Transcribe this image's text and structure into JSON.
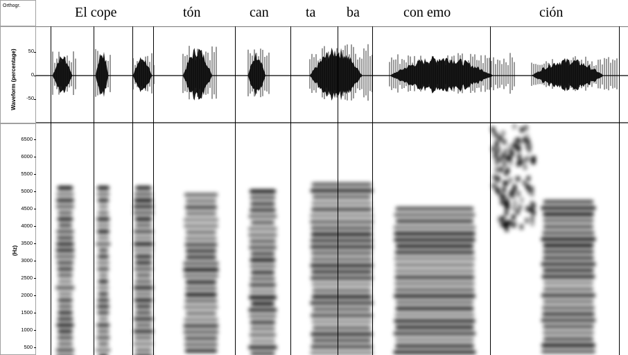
{
  "tiers": {
    "orthography": {
      "label": "Orthogr.",
      "words": [
        "El cope",
        "tón",
        "can",
        "ta",
        "ba",
        "con emo",
        "ción"
      ]
    },
    "waveform": {
      "label": "Waveform (percentage)",
      "ticks": [
        "50",
        "0",
        "-50"
      ]
    },
    "spectrogram": {
      "label": "(Hz)",
      "ticks": [
        "6500",
        "6000",
        "5500",
        "5000",
        "4500",
        "4000",
        "3500",
        "3000",
        "2500",
        "2000",
        "1500",
        "1000",
        "500"
      ]
    }
  },
  "colors": {
    "ink": "#000000",
    "background": "#ffffff",
    "frame": "#a0a0a0"
  }
}
